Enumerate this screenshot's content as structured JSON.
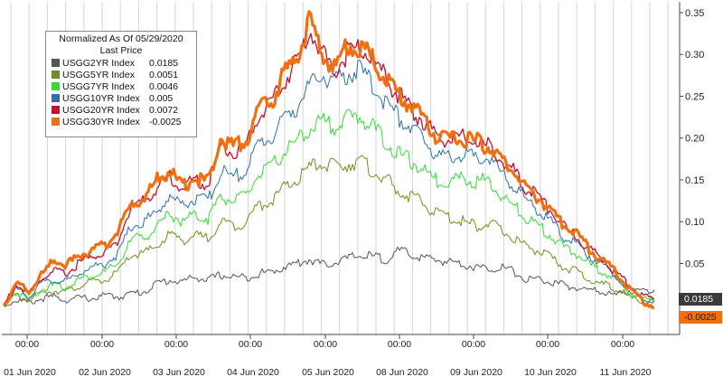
{
  "colors": {
    "USGG2YR": "#555555",
    "USGG5YR": "#6f8f1f",
    "USGG7YR": "#33dd33",
    "USGG10YR": "#2e6fa8",
    "USGG20YR": "#c8102e",
    "USGG30YR": "#f07010"
  },
  "legend": {
    "title_line1": "Normalized As Of 05/29/2020",
    "title_line2": "Last Price",
    "items": [
      {
        "name": "USGG2YR Index",
        "value": "0.0185",
        "color": "#555555"
      },
      {
        "name": "USGG5YR Index",
        "value": "0.0051",
        "color": "#6f8f1f"
      },
      {
        "name": "USGG7YR Index",
        "value": "0.0046",
        "color": "#33dd33"
      },
      {
        "name": "USGG10YR Index",
        "value": "0.005",
        "color": "#2e6fa8"
      },
      {
        "name": "USGG20YR Index",
        "value": "0.0072",
        "color": "#c8102e"
      },
      {
        "name": "USGG30YR Index",
        "value": "-0.0025",
        "color": "#f07010"
      }
    ]
  },
  "flags": {
    "usgg2yr_last": "0.0185",
    "usgg30yr_last": "-0.0025"
  },
  "chart_data": {
    "type": "line",
    "title": "",
    "xlabel": "",
    "ylabel": "",
    "ylim": [
      -0.02,
      0.35
    ],
    "y_ticks": [
      "0.05",
      "0.10",
      "0.15",
      "0.20",
      "0.25",
      "0.30",
      "0.35"
    ],
    "y_tick_values": [
      0.05,
      0.1,
      0.15,
      0.2,
      0.25,
      0.3,
      0.35
    ],
    "x_time_label": "00:00",
    "x_day_labels": [
      "01 Jun 2020",
      "02 Jun 2020",
      "03 Jun 2020",
      "04 Jun 2020",
      "05 Jun 2020",
      "08 Jun 2020",
      "09 Jun 2020",
      "10 Jun 2020",
      "11 Jun 2020"
    ],
    "grid": "vertical",
    "legend_position": "top-left",
    "series": [
      {
        "name": "USGG2YR Index",
        "color": "#555555",
        "values": [
          0.0,
          0.006,
          0.003,
          0.008,
          0.01,
          0.006,
          0.009,
          0.008,
          0.012,
          0.01,
          0.014,
          0.016,
          0.026,
          0.03,
          0.028,
          0.034,
          0.03,
          0.036,
          0.034,
          0.033,
          0.038,
          0.04,
          0.046,
          0.05,
          0.055,
          0.048,
          0.052,
          0.056,
          0.06,
          0.058,
          0.055,
          0.065,
          0.06,
          0.056,
          0.054,
          0.052,
          0.05,
          0.045,
          0.044,
          0.046,
          0.04,
          0.03,
          0.032,
          0.026,
          0.024,
          0.02,
          0.018,
          0.016,
          0.012,
          0.018,
          0.016,
          0.0185
        ]
      },
      {
        "name": "USGG5YR Index",
        "color": "#6f8f1f",
        "values": [
          0.0,
          0.012,
          0.006,
          0.015,
          0.018,
          0.016,
          0.024,
          0.028,
          0.03,
          0.04,
          0.06,
          0.062,
          0.07,
          0.085,
          0.078,
          0.083,
          0.08,
          0.1,
          0.095,
          0.1,
          0.12,
          0.125,
          0.14,
          0.15,
          0.165,
          0.17,
          0.165,
          0.17,
          0.172,
          0.16,
          0.15,
          0.135,
          0.13,
          0.12,
          0.11,
          0.105,
          0.1,
          0.095,
          0.098,
          0.09,
          0.08,
          0.07,
          0.065,
          0.055,
          0.045,
          0.04,
          0.03,
          0.025,
          0.02,
          0.01,
          0.005,
          0.0051
        ]
      },
      {
        "name": "USGG7YR Index",
        "color": "#33dd33",
        "values": [
          0.0,
          0.016,
          0.008,
          0.02,
          0.024,
          0.022,
          0.032,
          0.036,
          0.04,
          0.05,
          0.078,
          0.082,
          0.092,
          0.11,
          0.1,
          0.108,
          0.104,
          0.13,
          0.125,
          0.13,
          0.158,
          0.164,
          0.185,
          0.195,
          0.212,
          0.22,
          0.214,
          0.224,
          0.226,
          0.212,
          0.195,
          0.18,
          0.172,
          0.16,
          0.148,
          0.15,
          0.152,
          0.148,
          0.15,
          0.13,
          0.118,
          0.104,
          0.094,
          0.082,
          0.068,
          0.06,
          0.048,
          0.04,
          0.03,
          0.016,
          0.008,
          0.0046
        ]
      },
      {
        "name": "USGG10YR Index",
        "color": "#2e6fa8",
        "values": [
          0.0,
          0.02,
          0.01,
          0.026,
          0.03,
          0.028,
          0.04,
          0.046,
          0.05,
          0.062,
          0.095,
          0.1,
          0.112,
          0.13,
          0.12,
          0.128,
          0.124,
          0.16,
          0.154,
          0.16,
          0.195,
          0.2,
          0.225,
          0.238,
          0.262,
          0.275,
          0.266,
          0.278,
          0.28,
          0.262,
          0.242,
          0.224,
          0.212,
          0.196,
          0.18,
          0.178,
          0.18,
          0.176,
          0.178,
          0.158,
          0.142,
          0.126,
          0.112,
          0.098,
          0.08,
          0.072,
          0.058,
          0.048,
          0.036,
          0.02,
          0.01,
          0.005
        ]
      },
      {
        "name": "USGG20YR Index",
        "color": "#c8102e",
        "values": [
          0.0,
          0.024,
          0.014,
          0.032,
          0.04,
          0.038,
          0.052,
          0.058,
          0.064,
          0.078,
          0.118,
          0.124,
          0.14,
          0.155,
          0.14,
          0.15,
          0.145,
          0.19,
          0.182,
          0.19,
          0.23,
          0.238,
          0.27,
          0.29,
          0.33,
          0.3,
          0.28,
          0.305,
          0.31,
          0.29,
          0.27,
          0.25,
          0.235,
          0.218,
          0.2,
          0.198,
          0.2,
          0.195,
          0.19,
          0.175,
          0.16,
          0.14,
          0.128,
          0.11,
          0.092,
          0.082,
          0.066,
          0.054,
          0.04,
          0.024,
          0.012,
          0.0072
        ]
      },
      {
        "name": "USGG30YR Index",
        "color": "#f07010",
        "values": [
          0.0,
          0.026,
          0.016,
          0.036,
          0.055,
          0.048,
          0.06,
          0.066,
          0.072,
          0.09,
          0.12,
          0.128,
          0.15,
          0.16,
          0.142,
          0.152,
          0.148,
          0.2,
          0.19,
          0.198,
          0.235,
          0.245,
          0.275,
          0.3,
          0.34,
          0.3,
          0.285,
          0.31,
          0.312,
          0.292,
          0.272,
          0.252,
          0.238,
          0.22,
          0.2,
          0.198,
          0.2,
          0.196,
          0.19,
          0.176,
          0.16,
          0.14,
          0.128,
          0.112,
          0.094,
          0.084,
          0.066,
          0.054,
          0.04,
          0.022,
          0.006,
          -0.0025
        ]
      }
    ]
  }
}
